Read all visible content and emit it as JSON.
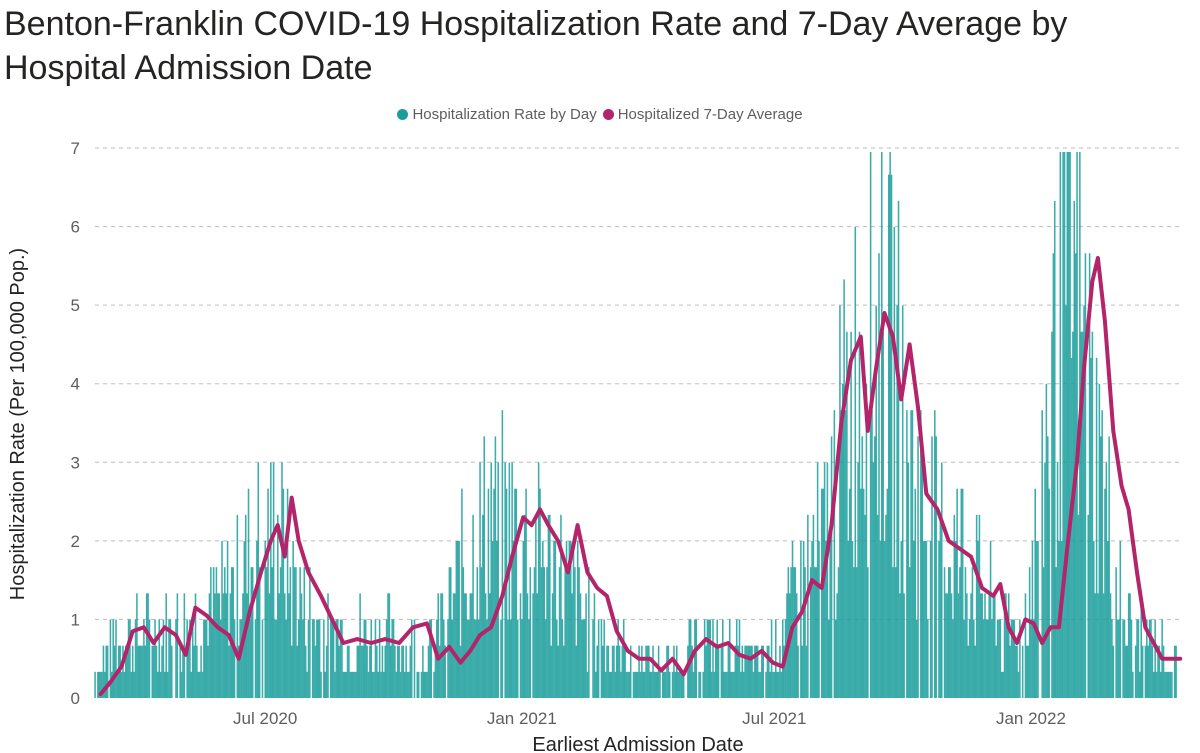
{
  "title": "Benton-Franklin COVID-19 Hospitalization Rate and 7-Day Average by Hospital Admission Date",
  "legend": {
    "items": [
      {
        "label": "Hospitalization Rate by Day",
        "color": "#1a9e9b"
      },
      {
        "label": "Hospitalized 7-Day Average",
        "color": "#b3246a"
      }
    ]
  },
  "chart_data": {
    "type": "bar",
    "title": "Benton-Franklin COVID-19 Hospitalization Rate and 7-Day Average by Hospital Admission Date",
    "xlabel": "Earliest Admission Date",
    "ylabel": "Hospitalization Rate (Per 100,000 Pop.)",
    "ylim": [
      0,
      7
    ],
    "yticks": [
      "0",
      "1",
      "2",
      "3",
      "4",
      "5",
      "6",
      "7"
    ],
    "xticks": [
      "Jul 2020",
      "Jan 2021",
      "Jul 2021",
      "Jan 2022"
    ],
    "grid": true,
    "legend_position": "top-center",
    "series": [
      {
        "name": "Hospitalization Rate by Day",
        "type": "bar",
        "color": "#1a9e9b",
        "x_range": [
          "2020-03-01",
          "2022-04-15"
        ],
        "note": "daily values approximated from visual envelope",
        "envelope_points": [
          [
            "2020-03-01",
            0.3
          ],
          [
            "2020-03-20",
            0.8
          ],
          [
            "2020-04-15",
            0.9
          ],
          [
            "2020-05-01",
            0.8
          ],
          [
            "2020-05-20",
            1.1
          ],
          [
            "2020-06-05",
            1.3
          ],
          [
            "2020-06-25",
            2.0
          ],
          [
            "2020-07-10",
            2.1
          ],
          [
            "2020-07-25",
            1.3
          ],
          [
            "2020-08-15",
            0.8
          ],
          [
            "2020-09-15",
            0.8
          ],
          [
            "2020-10-10",
            0.7
          ],
          [
            "2020-10-25",
            0.6
          ],
          [
            "2020-11-10",
            1.2
          ],
          [
            "2020-11-25",
            1.8
          ],
          [
            "2020-12-10",
            2.3
          ],
          [
            "2020-12-25",
            2.2
          ],
          [
            "2021-01-15",
            1.8
          ],
          [
            "2021-02-05",
            1.4
          ],
          [
            "2021-02-25",
            0.8
          ],
          [
            "2021-03-20",
            0.5
          ],
          [
            "2021-04-10",
            0.4
          ],
          [
            "2021-05-05",
            0.7
          ],
          [
            "2021-05-25",
            0.6
          ],
          [
            "2021-06-15",
            0.5
          ],
          [
            "2021-07-01",
            0.6
          ],
          [
            "2021-07-15",
            1.2
          ],
          [
            "2021-08-05",
            2.0
          ],
          [
            "2021-08-25",
            3.8
          ],
          [
            "2021-09-10",
            4.5
          ],
          [
            "2021-09-25",
            4.2
          ],
          [
            "2021-10-10",
            2.6
          ],
          [
            "2021-10-30",
            2.0
          ],
          [
            "2021-11-20",
            1.7
          ],
          [
            "2021-12-10",
            0.9
          ],
          [
            "2021-12-25",
            0.9
          ],
          [
            "2022-01-05",
            2.0
          ],
          [
            "2022-01-15",
            3.8
          ],
          [
            "2022-01-28",
            5.4
          ],
          [
            "2022-02-10",
            4.0
          ],
          [
            "2022-02-25",
            2.2
          ],
          [
            "2022-03-10",
            0.9
          ],
          [
            "2022-04-15",
            0.5
          ]
        ]
      },
      {
        "name": "Hospitalized 7-Day Average",
        "type": "line",
        "color": "#b3246a",
        "points": [
          [
            "2020-03-05",
            0.05
          ],
          [
            "2020-03-12",
            0.2
          ],
          [
            "2020-03-20",
            0.4
          ],
          [
            "2020-03-28",
            0.85
          ],
          [
            "2020-04-05",
            0.9
          ],
          [
            "2020-04-12",
            0.7
          ],
          [
            "2020-04-20",
            0.9
          ],
          [
            "2020-04-28",
            0.8
          ],
          [
            "2020-05-05",
            0.55
          ],
          [
            "2020-05-12",
            1.15
          ],
          [
            "2020-05-20",
            1.05
          ],
          [
            "2020-05-28",
            0.9
          ],
          [
            "2020-06-05",
            0.8
          ],
          [
            "2020-06-12",
            0.5
          ],
          [
            "2020-06-20",
            1.1
          ],
          [
            "2020-06-28",
            1.6
          ],
          [
            "2020-07-05",
            2.0
          ],
          [
            "2020-07-10",
            2.2
          ],
          [
            "2020-07-15",
            1.8
          ],
          [
            "2020-07-20",
            2.55
          ],
          [
            "2020-07-25",
            2.0
          ],
          [
            "2020-08-01",
            1.6
          ],
          [
            "2020-08-10",
            1.3
          ],
          [
            "2020-08-18",
            1.0
          ],
          [
            "2020-08-26",
            0.7
          ],
          [
            "2020-09-05",
            0.75
          ],
          [
            "2020-09-15",
            0.7
          ],
          [
            "2020-09-25",
            0.75
          ],
          [
            "2020-10-05",
            0.7
          ],
          [
            "2020-10-15",
            0.9
          ],
          [
            "2020-10-25",
            0.95
          ],
          [
            "2020-11-02",
            0.5
          ],
          [
            "2020-11-10",
            0.65
          ],
          [
            "2020-11-18",
            0.45
          ],
          [
            "2020-11-25",
            0.6
          ],
          [
            "2020-12-02",
            0.8
          ],
          [
            "2020-12-10",
            0.9
          ],
          [
            "2020-12-18",
            1.3
          ],
          [
            "2020-12-25",
            1.8
          ],
          [
            "2021-01-02",
            2.3
          ],
          [
            "2021-01-08",
            2.2
          ],
          [
            "2021-01-14",
            2.4
          ],
          [
            "2021-01-20",
            2.2
          ],
          [
            "2021-01-27",
            2.0
          ],
          [
            "2021-02-03",
            1.6
          ],
          [
            "2021-02-10",
            2.2
          ],
          [
            "2021-02-17",
            1.6
          ],
          [
            "2021-02-24",
            1.4
          ],
          [
            "2021-03-03",
            1.3
          ],
          [
            "2021-03-10",
            0.85
          ],
          [
            "2021-03-18",
            0.6
          ],
          [
            "2021-03-26",
            0.5
          ],
          [
            "2021-04-03",
            0.5
          ],
          [
            "2021-04-11",
            0.35
          ],
          [
            "2021-04-19",
            0.5
          ],
          [
            "2021-04-27",
            0.3
          ],
          [
            "2021-05-05",
            0.6
          ],
          [
            "2021-05-13",
            0.75
          ],
          [
            "2021-05-21",
            0.65
          ],
          [
            "2021-05-29",
            0.7
          ],
          [
            "2021-06-06",
            0.55
          ],
          [
            "2021-06-14",
            0.5
          ],
          [
            "2021-06-22",
            0.6
          ],
          [
            "2021-06-30",
            0.45
          ],
          [
            "2021-07-07",
            0.4
          ],
          [
            "2021-07-14",
            0.9
          ],
          [
            "2021-07-21",
            1.1
          ],
          [
            "2021-07-28",
            1.5
          ],
          [
            "2021-08-04",
            1.4
          ],
          [
            "2021-08-11",
            2.2
          ],
          [
            "2021-08-18",
            3.5
          ],
          [
            "2021-08-25",
            4.3
          ],
          [
            "2021-09-01",
            4.6
          ],
          [
            "2021-09-06",
            3.4
          ],
          [
            "2021-09-12",
            4.2
          ],
          [
            "2021-09-18",
            4.9
          ],
          [
            "2021-09-24",
            4.6
          ],
          [
            "2021-09-30",
            3.8
          ],
          [
            "2021-10-06",
            4.5
          ],
          [
            "2021-10-12",
            3.7
          ],
          [
            "2021-10-18",
            2.6
          ],
          [
            "2021-10-26",
            2.4
          ],
          [
            "2021-11-03",
            2.0
          ],
          [
            "2021-11-11",
            1.9
          ],
          [
            "2021-11-19",
            1.8
          ],
          [
            "2021-11-27",
            1.4
          ],
          [
            "2021-12-05",
            1.3
          ],
          [
            "2021-12-10",
            1.45
          ],
          [
            "2021-12-16",
            0.9
          ],
          [
            "2021-12-22",
            0.7
          ],
          [
            "2021-12-28",
            1.0
          ],
          [
            "2022-01-03",
            0.95
          ],
          [
            "2022-01-09",
            0.7
          ],
          [
            "2022-01-15",
            0.9
          ],
          [
            "2022-01-21",
            0.9
          ],
          [
            "2022-01-27",
            1.9
          ],
          [
            "2022-02-03",
            3.0
          ],
          [
            "2022-02-08",
            4.2
          ],
          [
            "2022-02-14",
            5.3
          ],
          [
            "2022-02-18",
            5.6
          ],
          [
            "2022-02-23",
            4.8
          ],
          [
            "2022-03-01",
            3.4
          ],
          [
            "2022-03-07",
            2.7
          ],
          [
            "2022-03-12",
            2.4
          ],
          [
            "2022-03-18",
            1.6
          ],
          [
            "2022-03-24",
            0.9
          ],
          [
            "2022-03-30",
            0.7
          ],
          [
            "2022-04-05",
            0.5
          ],
          [
            "2022-04-12",
            0.5
          ],
          [
            "2022-04-18",
            0.5
          ]
        ]
      }
    ]
  }
}
